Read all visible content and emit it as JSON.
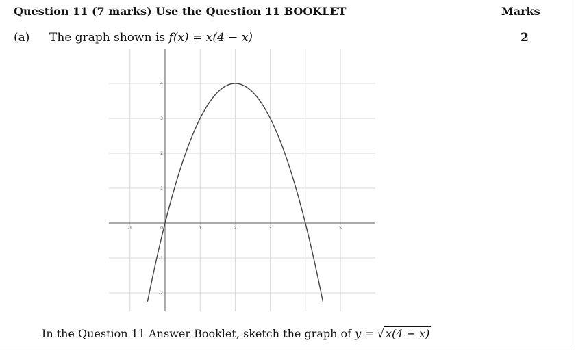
{
  "question": {
    "heading": "Question 11 (7 marks) Use the Question 11 BOOKLET",
    "marks_heading": "Marks"
  },
  "part_a": {
    "label": "(a)",
    "text_prefix": "The graph shown is ",
    "function_name": "f",
    "function_arg": "(x)",
    "equals": " = ",
    "function_body": "x(4 − x)",
    "marks": "2"
  },
  "instruction": {
    "text": "In the Question 11 Answer Booklet, sketch the graph of ",
    "lhs": "y",
    "equals": " = ",
    "radicand": "x(4 − x)"
  },
  "chart_data": {
    "type": "line",
    "function": "x(4 - x)",
    "x_ticks": [
      "-1",
      "0",
      "1",
      "2",
      "3",
      "5"
    ],
    "y_ticks": [
      "-2",
      "-1",
      "1",
      "2",
      "3",
      "4"
    ],
    "xlim": [
      -1.5,
      6
    ],
    "ylim": [
      -2.5,
      5
    ],
    "grid": true,
    "series": [
      {
        "x": [
          -0.5,
          -0.25,
          0,
          0.5,
          1,
          1.5,
          2,
          2.5,
          3,
          3.5,
          4,
          4.25,
          4.5
        ],
        "y": [
          -2.25,
          -1.0625,
          0,
          1.75,
          3,
          3.75,
          4,
          3.75,
          3,
          1.75,
          0,
          -1.0625,
          -2.25
        ]
      }
    ]
  }
}
